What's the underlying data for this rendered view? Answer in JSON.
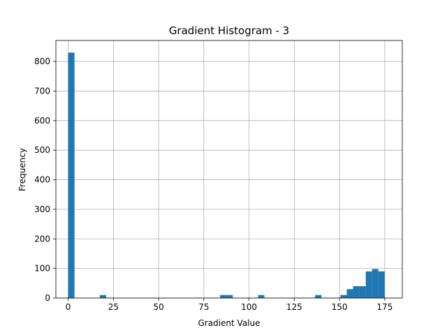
{
  "chart_data": {
    "type": "bar",
    "title": "Gradient Histogram - 3",
    "xlabel": "Gradient Value",
    "ylabel": "Frequency",
    "xlim": [
      -6.8,
      184.7
    ],
    "ylim": [
      0,
      871
    ],
    "xticks": [
      0,
      25,
      50,
      75,
      100,
      125,
      150,
      175
    ],
    "xtick_labels": [
      "0",
      "25",
      "50",
      "75",
      "100",
      "125",
      "150",
      "175"
    ],
    "yticks": [
      0,
      100,
      200,
      300,
      400,
      500,
      600,
      700,
      800
    ],
    "ytick_labels": [
      "0",
      "100",
      "200",
      "300",
      "400",
      "500",
      "600",
      "700",
      "800"
    ],
    "grid": true,
    "bin_width": 3.5,
    "bars": [
      {
        "x": 0,
        "value": 830
      },
      {
        "x": 17.5,
        "value": 10
      },
      {
        "x": 84,
        "value": 10
      },
      {
        "x": 87.5,
        "value": 10
      },
      {
        "x": 105,
        "value": 10
      },
      {
        "x": 136.5,
        "value": 10
      },
      {
        "x": 150.5,
        "value": 10
      },
      {
        "x": 154,
        "value": 30
      },
      {
        "x": 157.5,
        "value": 40
      },
      {
        "x": 161,
        "value": 40
      },
      {
        "x": 164.5,
        "value": 90
      },
      {
        "x": 168,
        "value": 98
      },
      {
        "x": 171.5,
        "value": 90
      }
    ],
    "colors": {
      "bar": "#1f77b4",
      "grid": "#b0b0b0"
    }
  }
}
